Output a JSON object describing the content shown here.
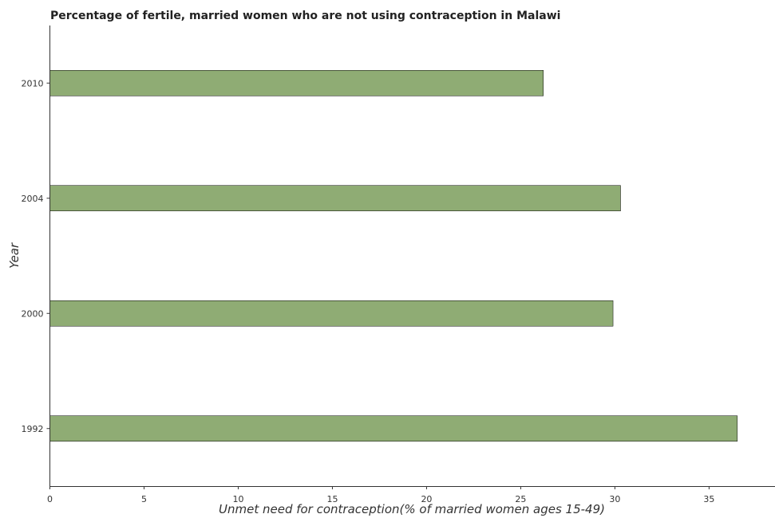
{
  "chart_data": {
    "type": "bar",
    "orientation": "horizontal",
    "title": "Percentage of fertile, married women who are not using contraception in Malawi",
    "xlabel": "Unmet need for contraception(% of married women ages 15-49)",
    "ylabel": "Year",
    "categories": [
      "1992",
      "2000",
      "2004",
      "2010"
    ],
    "values": [
      36.5,
      29.9,
      30.3,
      26.2
    ],
    "xlim": [
      0,
      38.5
    ],
    "xticks": [
      0,
      5,
      10,
      15,
      20,
      25,
      30,
      35
    ],
    "bar_color": "#8fac74",
    "bar_edge_color": "#000000",
    "grid": false
  }
}
